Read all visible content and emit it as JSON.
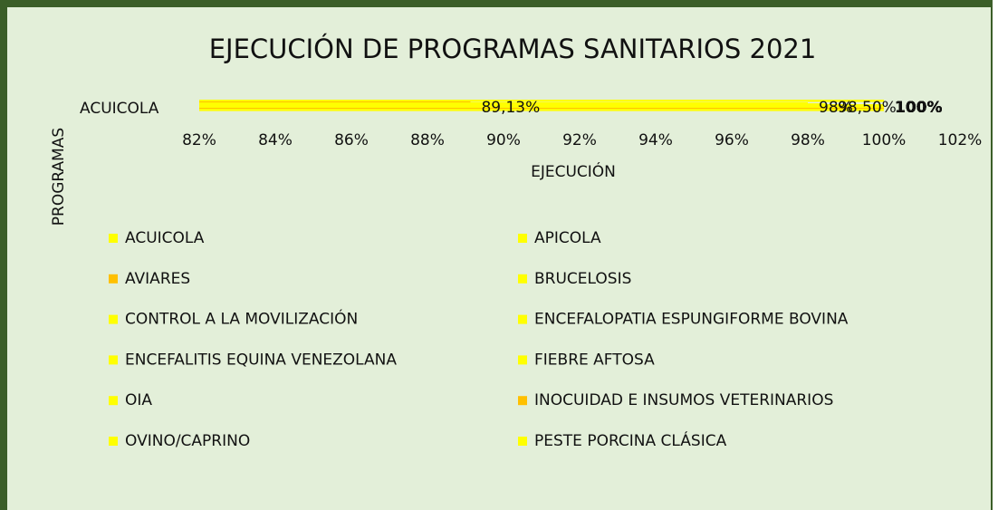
{
  "chart_data": {
    "type": "hbar",
    "title": "EJECUCIÓN DE PROGRAMAS SANITARIOS 2021",
    "x_label": "EJECUCIÓN",
    "y_label": "PROGRAMAS",
    "categories": [
      "ACUICOLA"
    ],
    "xlim": [
      82,
      102
    ],
    "xticks": [
      {
        "value": 82,
        "label": "82%"
      },
      {
        "value": 84,
        "label": "84%"
      },
      {
        "value": 86,
        "label": "86%"
      },
      {
        "value": 88,
        "label": "88%"
      },
      {
        "value": 90,
        "label": "90%"
      },
      {
        "value": 92,
        "label": "92%"
      },
      {
        "value": 94,
        "label": "94%"
      },
      {
        "value": 96,
        "label": "96%"
      },
      {
        "value": 98,
        "label": "98%"
      },
      {
        "value": 100,
        "label": "100%"
      },
      {
        "value": 102,
        "label": "102%"
      }
    ],
    "series": [
      {
        "name": "ACUICOLA",
        "color": "#ffff00",
        "values": [
          100
        ],
        "value_labels": [
          "100%"
        ]
      },
      {
        "name": "APICOLA",
        "color": "#ffff00",
        "values": [
          100
        ],
        "value_labels": [
          "100%"
        ]
      },
      {
        "name": "AVIARES",
        "color": "#ffc000",
        "values": [
          89.13
        ],
        "value_labels": [
          "89,13%"
        ]
      },
      {
        "name": "BRUCELOSIS",
        "color": "#ffff00",
        "values": [
          98
        ],
        "value_labels": [
          "98%"
        ]
      },
      {
        "name": "CONTROL A LA MOVILIZACIÓN",
        "color": "#ffff00",
        "values": [
          98.5
        ],
        "value_labels": [
          "98,50%"
        ]
      },
      {
        "name": "ENCEFALOPATIA ESPUNGIFORME BOVINA",
        "color": "#ffff00",
        "values": [
          100
        ],
        "value_labels": [
          "100%"
        ]
      },
      {
        "name": "ENCEFALITIS EQUINA VENEZOLANA",
        "color": "#ffff00",
        "values": [
          100
        ],
        "value_labels": [
          "100%"
        ]
      },
      {
        "name": "FIEBRE AFTOSA",
        "color": "#ffff00",
        "values": [
          100
        ],
        "value_labels": [
          "100%"
        ]
      },
      {
        "name": "OIA",
        "color": "#ffff00",
        "values": [
          100
        ],
        "value_labels": [
          "100%"
        ]
      },
      {
        "name": "INOCUIDAD E INSUMOS VETERINARIOS",
        "color": "#ffc000",
        "values": [
          100
        ],
        "value_labels": [
          "100%"
        ]
      },
      {
        "name": "OVINO/CAPRINO",
        "color": "#ffff00",
        "values": [
          100
        ],
        "value_labels": [
          "100%"
        ]
      },
      {
        "name": "PESTE PORCINA CLÁSICA",
        "color": "#ffff00",
        "values": [
          100
        ],
        "value_labels": [
          "100%"
        ]
      }
    ]
  }
}
